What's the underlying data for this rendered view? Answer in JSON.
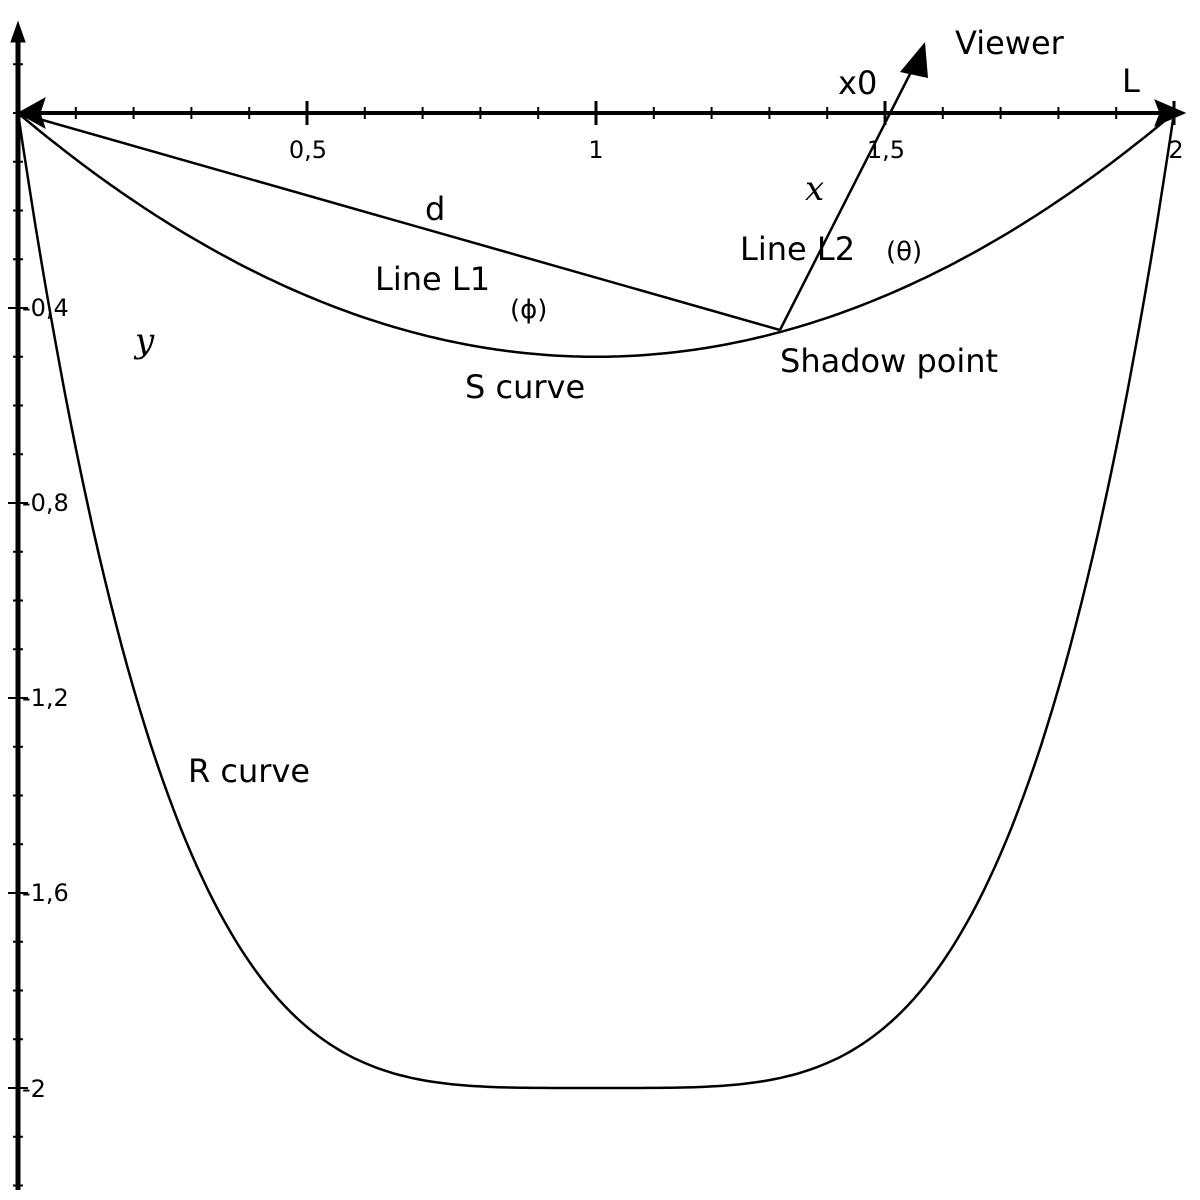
{
  "axes": {
    "x_tick_labels": [
      "0,5",
      "1",
      "1,5",
      "2"
    ],
    "y_tick_labels": [
      "-0,4",
      "-0,8",
      "-1,2",
      "-1,6",
      "-2"
    ]
  },
  "labels": {
    "viewer": "Viewer",
    "x0": "x0",
    "L": "L",
    "x": "x",
    "d": "d",
    "line_l1": "Line L1",
    "phi": "(ϕ)",
    "line_l2": "Line L2",
    "theta": "(θ)",
    "shadow_point": "Shadow point",
    "s_curve": "S curve",
    "y": "y",
    "r_curve": "R curve"
  }
}
